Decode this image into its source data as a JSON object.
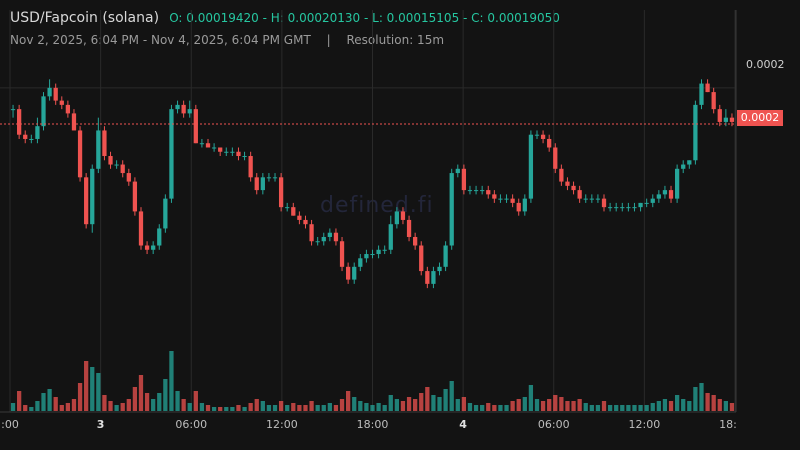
{
  "header": {
    "pair": "USD/Fapcoin (solana)",
    "ohlc": "O: 0.00019420 - H: 0.00020130 - L: 0.00015105 - C: 0.00019050",
    "range": "Nov 2, 2025, 6:04 PM - Nov 4, 2025, 6:04 PM GMT",
    "separator": "|",
    "resolution": "Resolution: 15m"
  },
  "watermark": "defined.fi",
  "colors": {
    "up": "#26a69a",
    "down": "#ef5350",
    "background": "#131313",
    "grid": "#2a2a2a"
  },
  "chart_data": {
    "type": "candlestick",
    "y_axis_labels": [
      "0.0002"
    ],
    "last_price_label": "0.0002",
    "x_tick_labels": [
      ":00",
      "3",
      "06:00",
      "12:00",
      "18:00",
      "4",
      "06:00",
      "12:00",
      "18:"
    ],
    "x_tick_bold": [
      false,
      true,
      false,
      false,
      false,
      true,
      false,
      false,
      false
    ],
    "ylim": [
      0.000142,
      0.000207
    ],
    "y_reference": 0.0002,
    "last_price": 0.0001915,
    "candles": [
      [
        0.000195,
        0.000196,
        0.000193,
        0.000195,
        4
      ],
      [
        0.000195,
        0.000196,
        0.000188,
        0.000189,
        10
      ],
      [
        0.000189,
        0.00019,
        0.000187,
        0.000188,
        3
      ],
      [
        0.000188,
        0.000189,
        0.000187,
        0.000188,
        2
      ],
      [
        0.000188,
        0.000193,
        0.000187,
        0.000191,
        5
      ],
      [
        0.000191,
        0.000199,
        0.00019,
        0.000198,
        9
      ],
      [
        0.000198,
        0.000202,
        0.000197,
        0.0002,
        11
      ],
      [
        0.0002,
        0.000201,
        0.000196,
        0.000197,
        7
      ],
      [
        0.000197,
        0.000198,
        0.000195,
        0.000196,
        3
      ],
      [
        0.000196,
        0.000197,
        0.000193,
        0.000194,
        4
      ],
      [
        0.000194,
        0.000195,
        0.00019,
        0.00019,
        6
      ],
      [
        0.00019,
        0.000191,
        0.000178,
        0.000179,
        14
      ],
      [
        0.000179,
        0.00018,
        0.000167,
        0.000168,
        25
      ],
      [
        0.000168,
        0.000182,
        0.000166,
        0.000181,
        22
      ],
      [
        0.000181,
        0.000193,
        0.00018,
        0.00019,
        19
      ],
      [
        0.00019,
        0.000191,
        0.000183,
        0.000184,
        8
      ],
      [
        0.000184,
        0.000185,
        0.000181,
        0.000182,
        5
      ],
      [
        0.000182,
        0.000183,
        0.000181,
        0.000182,
        3
      ],
      [
        0.000182,
        0.000183,
        0.000179,
        0.00018,
        4
      ],
      [
        0.00018,
        0.000181,
        0.000177,
        0.000178,
        6
      ],
      [
        0.000178,
        0.000179,
        0.00017,
        0.000171,
        12
      ],
      [
        0.000171,
        0.000172,
        0.000162,
        0.000163,
        18
      ],
      [
        0.000163,
        0.000164,
        0.000161,
        0.000162,
        9
      ],
      [
        0.000162,
        0.000164,
        0.000161,
        0.000163,
        6
      ],
      [
        0.000163,
        0.000168,
        0.000162,
        0.000167,
        9
      ],
      [
        0.000167,
        0.000175,
        0.000166,
        0.000174,
        16
      ],
      [
        0.000174,
        0.000196,
        0.000173,
        0.000195,
        30
      ],
      [
        0.000195,
        0.000197,
        0.000194,
        0.000196,
        10
      ],
      [
        0.000196,
        0.000197,
        0.000193,
        0.000194,
        6
      ],
      [
        0.000194,
        0.000197,
        0.000193,
        0.000195,
        4
      ],
      [
        0.000195,
        0.000196,
        0.000187,
        0.000187,
        10
      ],
      [
        0.000187,
        0.000188,
        0.000186,
        0.000187,
        4
      ],
      [
        0.000187,
        0.000188,
        0.000186,
        0.000186,
        3
      ],
      [
        0.000186,
        0.000187,
        0.000185,
        0.000186,
        2
      ],
      [
        0.000186,
        0.000186,
        0.000184,
        0.000185,
        2
      ],
      [
        0.000185,
        0.000186,
        0.000184,
        0.000185,
        2
      ],
      [
        0.000185,
        0.000186,
        0.000184,
        0.000185,
        2
      ],
      [
        0.000185,
        0.000186,
        0.000183,
        0.000184,
        3
      ],
      [
        0.000184,
        0.000185,
        0.000183,
        0.000184,
        2
      ],
      [
        0.000184,
        0.000185,
        0.000178,
        0.000179,
        4
      ],
      [
        0.000179,
        0.00018,
        0.000175,
        0.000176,
        6
      ],
      [
        0.000176,
        0.00018,
        0.000175,
        0.000179,
        5
      ],
      [
        0.000179,
        0.00018,
        0.000178,
        0.000179,
        3
      ],
      [
        0.000179,
        0.00018,
        0.000178,
        0.000179,
        3
      ],
      [
        0.000179,
        0.00018,
        0.000171,
        0.000172,
        5
      ],
      [
        0.000172,
        0.000173,
        0.000171,
        0.000172,
        3
      ],
      [
        0.000172,
        0.000173,
        0.00017,
        0.00017,
        4
      ],
      [
        0.00017,
        0.000171,
        0.000168,
        0.000169,
        3
      ],
      [
        0.000169,
        0.00017,
        0.000167,
        0.000168,
        3
      ],
      [
        0.000168,
        0.000169,
        0.000163,
        0.000164,
        5
      ],
      [
        0.000164,
        0.000165,
        0.000163,
        0.000164,
        3
      ],
      [
        0.000164,
        0.000166,
        0.000163,
        0.000165,
        3
      ],
      [
        0.000165,
        0.000167,
        0.000164,
        0.000166,
        4
      ],
      [
        0.000166,
        0.000167,
        0.000163,
        0.000164,
        3
      ],
      [
        0.000164,
        0.000165,
        0.000157,
        0.000158,
        6
      ],
      [
        0.000158,
        0.000159,
        0.000154,
        0.000155,
        10
      ],
      [
        0.000155,
        0.000159,
        0.000154,
        0.000158,
        7
      ],
      [
        0.000158,
        0.000161,
        0.000157,
        0.00016,
        5
      ],
      [
        0.00016,
        0.000162,
        0.000159,
        0.000161,
        4
      ],
      [
        0.000161,
        0.000162,
        0.00016,
        0.000161,
        3
      ],
      [
        0.000161,
        0.000163,
        0.00016,
        0.000162,
        4
      ],
      [
        0.000162,
        0.000163,
        0.000161,
        0.000162,
        3
      ],
      [
        0.000162,
        0.00017,
        0.000161,
        0.000168,
        8
      ],
      [
        0.000168,
        0.000172,
        0.000167,
        0.000171,
        6
      ],
      [
        0.000171,
        0.000172,
        0.000168,
        0.000169,
        5
      ],
      [
        0.000169,
        0.00017,
        0.000164,
        0.000165,
        7
      ],
      [
        0.000165,
        0.000166,
        0.000162,
        0.000163,
        6
      ],
      [
        0.000163,
        0.000164,
        0.000156,
        0.000157,
        9
      ],
      [
        0.000157,
        0.000158,
        0.000153,
        0.000154,
        12
      ],
      [
        0.000154,
        0.000158,
        0.000153,
        0.000157,
        8
      ],
      [
        0.000157,
        0.000159,
        0.000156,
        0.000158,
        7
      ],
      [
        0.000158,
        0.000164,
        0.000157,
        0.000163,
        11
      ],
      [
        0.000163,
        0.000181,
        0.000162,
        0.00018,
        15
      ],
      [
        0.00018,
        0.000182,
        0.000179,
        0.000181,
        6
      ],
      [
        0.000181,
        0.000182,
        0.000175,
        0.000176,
        7
      ],
      [
        0.000176,
        0.000177,
        0.000175,
        0.000176,
        4
      ],
      [
        0.000176,
        0.000177,
        0.000175,
        0.000176,
        3
      ],
      [
        0.000176,
        0.000177,
        0.000175,
        0.000176,
        3
      ],
      [
        0.000176,
        0.000177,
        0.000174,
        0.000175,
        4
      ],
      [
        0.000175,
        0.000176,
        0.000173,
        0.000174,
        3
      ],
      [
        0.000174,
        0.000175,
        0.000173,
        0.000174,
        3
      ],
      [
        0.000174,
        0.000175,
        0.000173,
        0.000174,
        3
      ],
      [
        0.000174,
        0.000175,
        0.000172,
        0.000173,
        5
      ],
      [
        0.000173,
        0.000174,
        0.00017,
        0.000171,
        6
      ],
      [
        0.000171,
        0.000175,
        0.00017,
        0.000174,
        7
      ],
      [
        0.000174,
        0.00019,
        0.000173,
        0.000189,
        13
      ],
      [
        0.000189,
        0.00019,
        0.000188,
        0.000189,
        6
      ],
      [
        0.000189,
        0.00019,
        0.000187,
        0.000188,
        5
      ],
      [
        0.000188,
        0.000189,
        0.000185,
        0.000186,
        6
      ],
      [
        0.000186,
        0.000187,
        0.00018,
        0.000181,
        8
      ],
      [
        0.000181,
        0.000182,
        0.000177,
        0.000178,
        7
      ],
      [
        0.000178,
        0.000179,
        0.000176,
        0.000177,
        5
      ],
      [
        0.000177,
        0.000178,
        0.000175,
        0.000176,
        5
      ],
      [
        0.000176,
        0.000177,
        0.000173,
        0.000174,
        6
      ],
      [
        0.000174,
        0.000175,
        0.000173,
        0.000174,
        4
      ],
      [
        0.000174,
        0.000175,
        0.000173,
        0.000174,
        3
      ],
      [
        0.000174,
        0.000175,
        0.000173,
        0.000174,
        3
      ],
      [
        0.000174,
        0.000175,
        0.000171,
        0.000172,
        5
      ],
      [
        0.000172,
        0.000173,
        0.000171,
        0.000172,
        3
      ],
      [
        0.000172,
        0.000173,
        0.000171,
        0.000172,
        3
      ],
      [
        0.000172,
        0.000173,
        0.000171,
        0.000172,
        3
      ],
      [
        0.000172,
        0.000173,
        0.000171,
        0.000172,
        3
      ],
      [
        0.000172,
        0.000173,
        0.000171,
        0.000172,
        3
      ],
      [
        0.000172,
        0.000173,
        0.000171,
        0.000173,
        3
      ],
      [
        0.000173,
        0.000174,
        0.000172,
        0.000173,
        3
      ],
      [
        0.000173,
        0.000175,
        0.000172,
        0.000174,
        4
      ],
      [
        0.000174,
        0.000176,
        0.000173,
        0.000175,
        5
      ],
      [
        0.000175,
        0.000177,
        0.000174,
        0.000176,
        6
      ],
      [
        0.000176,
        0.000177,
        0.000173,
        0.000174,
        5
      ],
      [
        0.000174,
        0.000182,
        0.000173,
        0.000181,
        8
      ],
      [
        0.000181,
        0.000183,
        0.00018,
        0.000182,
        6
      ],
      [
        0.000182,
        0.000183,
        0.000181,
        0.000183,
        5
      ],
      [
        0.000183,
        0.000197,
        0.000182,
        0.000196,
        12
      ],
      [
        0.000196,
        0.000202,
        0.000195,
        0.000201,
        14
      ],
      [
        0.000201,
        0.000202,
        0.000199,
        0.000199,
        9
      ],
      [
        0.000199,
        0.0002,
        0.000194,
        0.000195,
        8
      ],
      [
        0.000195,
        0.000196,
        0.000191,
        0.000192,
        6
      ],
      [
        0.000192,
        0.000195,
        0.000191,
        0.000193,
        5
      ],
      [
        0.000193,
        0.000194,
        0.000191,
        0.000192,
        4
      ]
    ]
  }
}
